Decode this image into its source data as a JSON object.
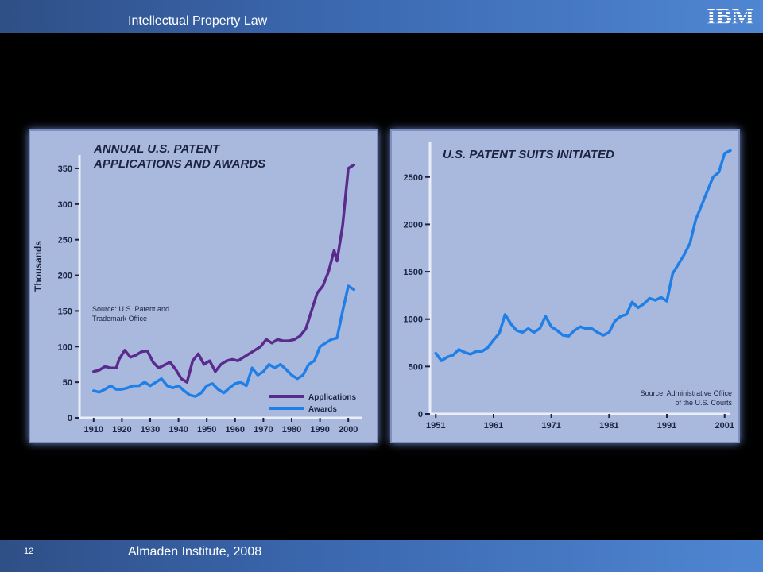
{
  "header": {
    "title": "Intellectual Property Law"
  },
  "footer": {
    "page_number": "12",
    "text": "Almaden Institute, 2008"
  },
  "logo": {
    "text": "IBM",
    "color": "#ffffff"
  },
  "colors": {
    "bar": "#3a66ad",
    "panel": "#a9b9dd",
    "applications": "#5a2a8c",
    "awards": "#1f7fe6",
    "suits": "#1f7fe6"
  },
  "chart_data": [
    {
      "type": "line",
      "title_line1": "ANNUAL U.S. PATENT",
      "title_line2": "APPLICATIONS AND AWARDS",
      "ylabel": "Thousands",
      "source_line1": "Source: U.S. Patent and",
      "source_line2": "Trademark Office",
      "xlim": [
        1905,
        2005
      ],
      "ylim": [
        0,
        360
      ],
      "x_ticks": [
        1910,
        1920,
        1930,
        1940,
        1950,
        1960,
        1970,
        1980,
        1990,
        2000
      ],
      "x_tick_labels": [
        "1910",
        "1920",
        "1930",
        "1940",
        "1950",
        "1960",
        "1970",
        "1980",
        "1990",
        "2000"
      ],
      "y_ticks": [
        0,
        50,
        100,
        150,
        200,
        250,
        300,
        350
      ],
      "y_tick_labels": [
        "0",
        "50",
        "100",
        "150",
        "200",
        "250",
        "300",
        "350"
      ],
      "legend_position": "bottom-right",
      "series": [
        {
          "name": "Applications",
          "color": "#5a2a8c",
          "x": [
            1910,
            1912,
            1914,
            1916,
            1918,
            1919,
            1921,
            1923,
            1925,
            1927,
            1929,
            1931,
            1933,
            1935,
            1937,
            1939,
            1941,
            1943,
            1945,
            1947,
            1949,
            1951,
            1953,
            1955,
            1957,
            1959,
            1961,
            1963,
            1965,
            1967,
            1969,
            1971,
            1973,
            1975,
            1977,
            1979,
            1981,
            1983,
            1985,
            1987,
            1989,
            1991,
            1993,
            1995,
            1996,
            1998,
            2000,
            2002
          ],
          "y": [
            65,
            67,
            72,
            70,
            70,
            82,
            95,
            85,
            88,
            93,
            94,
            78,
            70,
            74,
            78,
            68,
            55,
            50,
            80,
            90,
            75,
            80,
            65,
            75,
            80,
            82,
            80,
            85,
            90,
            95,
            100,
            110,
            105,
            110,
            108,
            108,
            110,
            115,
            125,
            150,
            175,
            185,
            205,
            235,
            220,
            270,
            350,
            355
          ]
        },
        {
          "name": "Awards",
          "color": "#1f7fe6",
          "x": [
            1910,
            1912,
            1914,
            1916,
            1918,
            1920,
            1922,
            1924,
            1926,
            1928,
            1930,
            1932,
            1934,
            1936,
            1938,
            1940,
            1942,
            1944,
            1946,
            1948,
            1950,
            1952,
            1954,
            1956,
            1958,
            1960,
            1962,
            1964,
            1966,
            1968,
            1970,
            1972,
            1974,
            1976,
            1978,
            1980,
            1982,
            1984,
            1986,
            1988,
            1990,
            1992,
            1994,
            1996,
            1998,
            2000,
            2002
          ],
          "y": [
            38,
            36,
            40,
            45,
            40,
            40,
            42,
            45,
            45,
            50,
            45,
            50,
            55,
            45,
            42,
            45,
            38,
            32,
            30,
            35,
            45,
            48,
            40,
            35,
            42,
            48,
            50,
            45,
            70,
            60,
            65,
            75,
            70,
            75,
            68,
            60,
            55,
            60,
            75,
            80,
            100,
            105,
            110,
            112,
            150,
            185,
            180
          ]
        }
      ]
    },
    {
      "type": "line",
      "title": "U.S. PATENT SUITS INITIATED",
      "source_line1": "Source: Administrative Office",
      "source_line2": "of the U.S. Courts",
      "xlim": [
        1950,
        2002
      ],
      "ylim": [
        0,
        2800
      ],
      "x_ticks": [
        1951,
        1961,
        1971,
        1981,
        1991,
        2001
      ],
      "x_tick_labels": [
        "1951",
        "1961",
        "1971",
        "1981",
        "1991",
        "2001"
      ],
      "y_ticks": [
        0,
        500,
        1000,
        1500,
        2000,
        2500
      ],
      "y_tick_labels": [
        "0",
        "500",
        "1000",
        "1500",
        "2000",
        "2500"
      ],
      "series": [
        {
          "name": "",
          "color": "#1f7fe6",
          "x": [
            1951,
            1952,
            1953,
            1954,
            1955,
            1956,
            1957,
            1958,
            1959,
            1960,
            1961,
            1962,
            1963,
            1964,
            1965,
            1966,
            1967,
            1968,
            1969,
            1970,
            1971,
            1972,
            1973,
            1974,
            1975,
            1976,
            1977,
            1978,
            1979,
            1980,
            1981,
            1982,
            1983,
            1984,
            1985,
            1986,
            1987,
            1988,
            1989,
            1990,
            1991,
            1992,
            1993,
            1994,
            1995,
            1996,
            1997,
            1998,
            1999,
            2000,
            2001,
            2002
          ],
          "y": [
            640,
            560,
            600,
            620,
            680,
            650,
            630,
            660,
            660,
            700,
            780,
            850,
            1050,
            950,
            880,
            860,
            900,
            860,
            900,
            1030,
            920,
            880,
            830,
            820,
            880,
            920,
            900,
            900,
            860,
            830,
            860,
            980,
            1030,
            1050,
            1180,
            1120,
            1160,
            1220,
            1200,
            1230,
            1190,
            1480,
            1580,
            1680,
            1800,
            2050,
            2200,
            2350,
            2500,
            2550,
            2750,
            2780
          ]
        }
      ]
    }
  ]
}
